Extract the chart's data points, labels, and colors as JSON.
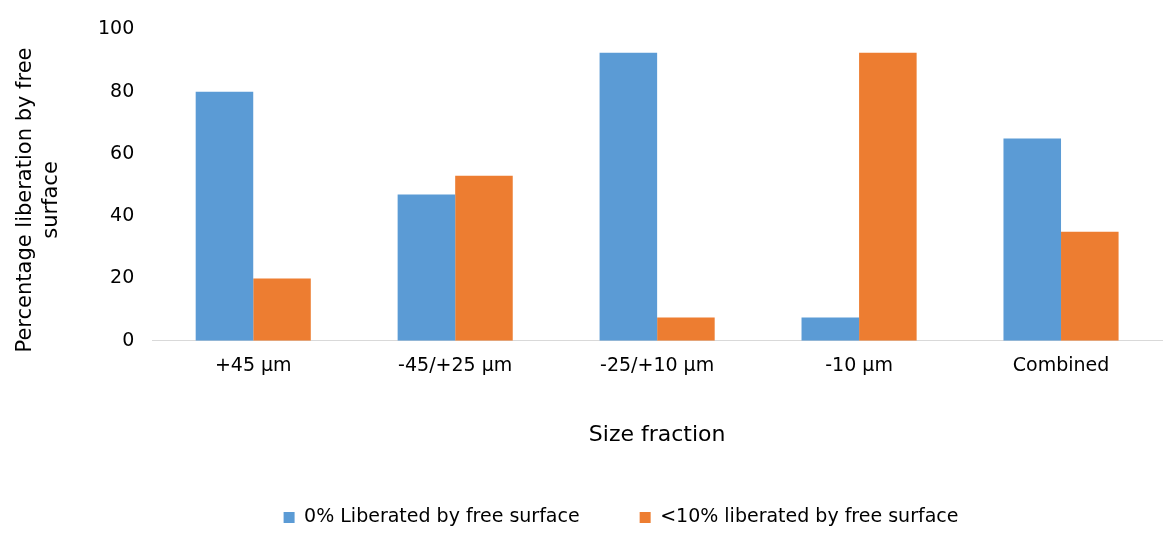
{
  "chart_data": {
    "type": "bar",
    "xlabel": "Size fraction",
    "ylabel": "Percentage liberation by free surface",
    "categories": [
      "+45 µm",
      "-45/+25 µm",
      "-25/+10 µm",
      "-10 µm",
      "Combined"
    ],
    "series": [
      {
        "name": "0% Liberated by free surface",
        "color": "#5b9bd5",
        "values": [
          80,
          47,
          92.5,
          7.5,
          65
        ]
      },
      {
        "name": "<10% liberated by free surface",
        "color": "#ed7d31",
        "values": [
          20,
          53,
          7.5,
          92.5,
          35
        ]
      }
    ],
    "ylim": [
      0,
      100
    ],
    "yticks": [
      0,
      20,
      40,
      60,
      80,
      100
    ],
    "grid": false,
    "legend": "bottom"
  }
}
